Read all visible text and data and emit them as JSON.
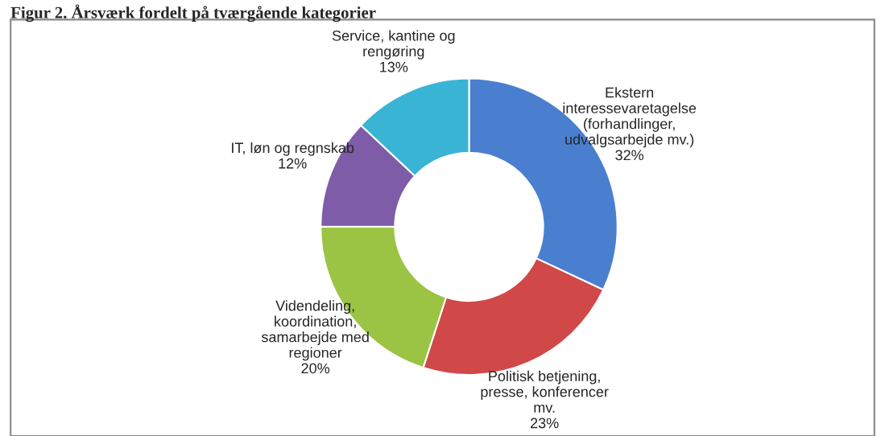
{
  "chart_data": {
    "type": "donut",
    "title": "Figur 2. Årsværk fordelt på tværgående kategorier",
    "categories": [
      "Ekstern\ninteressevaretagelse\n(forhandlinger,\nudvalgsarbejde mv.)",
      "Politisk betjening,\npresse, konferencer\nmv.",
      "Videndeling,\nkoordination,\nsamarbejde med\nregioner",
      "IT, løn og regnskab",
      "Service, kantine og\nrengøring"
    ],
    "values": [
      32,
      23,
      20,
      12,
      13
    ],
    "value_labels": [
      "32%",
      "23%",
      "20%",
      "12%",
      "13%"
    ],
    "colors": [
      "#4a7fd0",
      "#d04848",
      "#9bc444",
      "#7e5ca8",
      "#3ab4d4"
    ]
  }
}
